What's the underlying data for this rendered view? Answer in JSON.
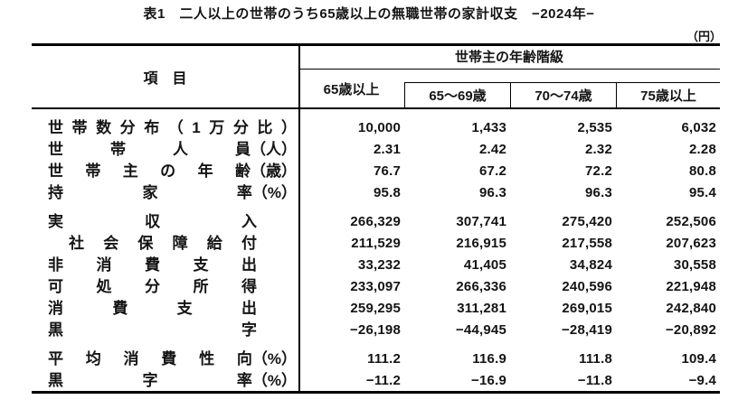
{
  "title": "表1　二人以上の世帯のうち65歳以上の無職世帯の家計収支　−2024年−",
  "unit_label": "（円）",
  "table": {
    "item_header": "項　目",
    "group_header": "世帯主の年齢階級",
    "columns": [
      "65歳以上",
      "65～69歳",
      "70～74歳",
      "75歳以上"
    ],
    "rows": [
      {
        "label": [
          "世",
          "帯",
          "数",
          "分",
          "布",
          "（",
          "1",
          "万",
          "分",
          "比",
          "）"
        ],
        "style": "unit",
        "gap_before": false,
        "values": [
          "10,000",
          "1,433",
          "2,535",
          "6,032"
        ]
      },
      {
        "label": [
          "世",
          "帯",
          "人",
          "員（人）"
        ],
        "style": "unit",
        "gap_before": false,
        "values": [
          "2.31",
          "2.42",
          "2.32",
          "2.28"
        ]
      },
      {
        "label": [
          "世",
          "帯",
          "主",
          "の",
          "年",
          "齢（歳）"
        ],
        "style": "unit",
        "gap_before": false,
        "values": [
          "76.7",
          "67.2",
          "72.2",
          "80.8"
        ]
      },
      {
        "label": [
          "持",
          "家",
          "率（%）"
        ],
        "style": "unit",
        "gap_before": false,
        "values": [
          "95.8",
          "96.3",
          "96.3",
          "95.4"
        ]
      },
      {
        "label": [
          "実",
          "収",
          "入"
        ],
        "style": "plain",
        "gap_before": true,
        "values": [
          "266,329",
          "307,741",
          "275,420",
          "252,506"
        ]
      },
      {
        "label": [
          "社",
          "会",
          "保",
          "障",
          "給",
          "付"
        ],
        "style": "indent",
        "gap_before": false,
        "values": [
          "211,529",
          "216,915",
          "217,558",
          "207,623"
        ]
      },
      {
        "label": [
          "非",
          "消",
          "費",
          "支",
          "出"
        ],
        "style": "plain",
        "gap_before": false,
        "values": [
          "33,232",
          "41,405",
          "34,824",
          "30,558"
        ]
      },
      {
        "label": [
          "可",
          "処",
          "分",
          "所",
          "得"
        ],
        "style": "plain",
        "gap_before": false,
        "values": [
          "233,097",
          "266,336",
          "240,596",
          "221,948"
        ]
      },
      {
        "label": [
          "消",
          "費",
          "支",
          "出"
        ],
        "style": "plain",
        "gap_before": false,
        "values": [
          "259,295",
          "311,281",
          "269,015",
          "242,840"
        ]
      },
      {
        "label": [
          "黒",
          "字"
        ],
        "style": "plain",
        "gap_before": false,
        "values": [
          "−26,198",
          "−44,945",
          "−28,419",
          "−20,892"
        ]
      },
      {
        "label": [
          "平",
          "均",
          "消",
          "費",
          "性",
          "向（%）"
        ],
        "style": "unit",
        "gap_before": true,
        "values": [
          "111.2",
          "116.9",
          "111.8",
          "109.4"
        ]
      },
      {
        "label": [
          "黒",
          "字",
          "率（%）"
        ],
        "style": "unit",
        "gap_before": false,
        "values": [
          "−11.2",
          "−16.9",
          "−11.8",
          "−9.4"
        ]
      }
    ]
  }
}
